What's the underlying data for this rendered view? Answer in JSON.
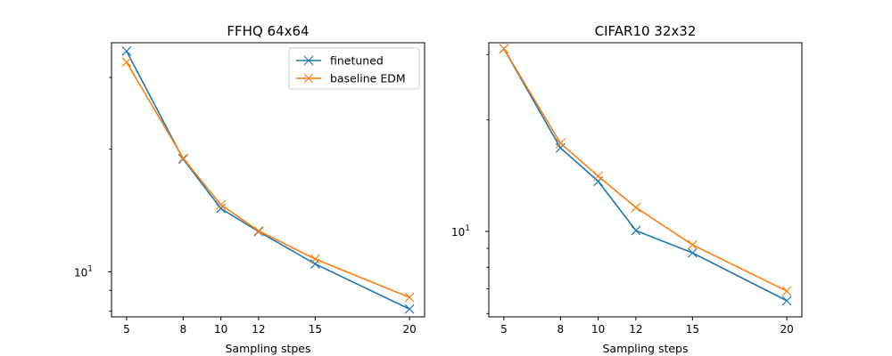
{
  "colors": {
    "finetuned": "#1f77b4",
    "baseline": "#ff7f0e"
  },
  "legend": {
    "placement": "top-right",
    "entries": [
      "finetuned",
      "baseline EDM"
    ]
  },
  "chart_data": [
    {
      "type": "line",
      "title": "FFHQ 64x64",
      "xlabel": "Sampling stpes",
      "ylabel": "",
      "yscale": "log",
      "x": [
        5,
        8,
        10,
        12,
        15,
        20
      ],
      "xticks": [
        "5",
        "8",
        "10",
        "12",
        "15",
        "20"
      ],
      "xlim": [
        4.2,
        20.8
      ],
      "ylim": [
        7.75,
        36.5
      ],
      "ytick_label": {
        "base": "10",
        "exp": "1",
        "value": 10
      },
      "series": [
        {
          "name": "finetuned",
          "marker": "x",
          "values": [
            34.8,
            18.9,
            14.3,
            12.55,
            10.45,
            8.1
          ]
        },
        {
          "name": "baseline EDM",
          "marker": "x",
          "values": [
            32.7,
            19.0,
            14.6,
            12.6,
            10.75,
            8.65
          ]
        }
      ]
    },
    {
      "type": "line",
      "title": "CIFAR10 32x32",
      "xlabel": "Sampling steps",
      "ylabel": "",
      "yscale": "log",
      "x": [
        5,
        8,
        10,
        12,
        15,
        20
      ],
      "xticks": [
        "5",
        "8",
        "10",
        "12",
        "15",
        "20"
      ],
      "xlim": [
        4.2,
        20.8
      ],
      "ylim": [
        5.88,
        32.3
      ],
      "ytick_label": {
        "base": "10",
        "exp": "1",
        "value": 10
      },
      "series": [
        {
          "name": "finetuned",
          "marker": "x",
          "values": [
            31.1,
            16.8,
            13.65,
            10.05,
            8.75,
            6.5
          ]
        },
        {
          "name": "baseline EDM",
          "marker": "x",
          "values": [
            31.1,
            17.3,
            14.1,
            11.6,
            9.2,
            6.9
          ]
        }
      ]
    }
  ]
}
